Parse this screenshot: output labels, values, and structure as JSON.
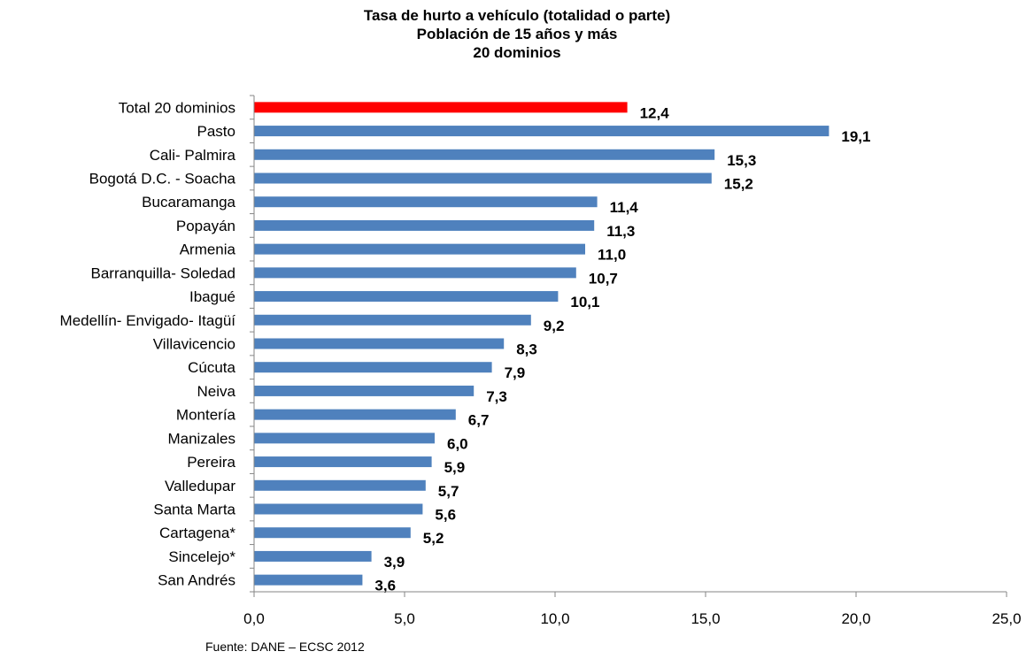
{
  "chart_data": {
    "type": "bar",
    "orientation": "horizontal",
    "title": [
      "Tasa de hurto a vehículo (totalidad o parte)",
      "Población de 15 años y más",
      "20 dominios"
    ],
    "categories": [
      "Total 20 dominios",
      "Pasto",
      "Cali- Palmira",
      "Bogotá D.C. - Soacha",
      "Bucaramanga",
      "Popayán",
      "Armenia",
      "Barranquilla- Soledad",
      "Ibagué",
      "Medellín- Envigado- Itagüí",
      "Villavicencio",
      "Cúcuta",
      "Neiva",
      "Montería",
      "Manizales",
      "Pereira",
      "Valledupar",
      "Santa Marta",
      "Cartagena*",
      "Sincelejo*",
      "San Andrés"
    ],
    "values": [
      12.4,
      19.1,
      15.3,
      15.2,
      11.4,
      11.3,
      11.0,
      10.7,
      10.1,
      9.2,
      8.3,
      7.9,
      7.3,
      6.7,
      6.0,
      5.9,
      5.7,
      5.6,
      5.2,
      3.9,
      3.6
    ],
    "value_labels": [
      "12,4",
      "19,1",
      "15,3",
      "15,2",
      "11,4",
      "11,3",
      "11,0",
      "10,7",
      "10,1",
      "9,2",
      "8,3",
      "7,9",
      "7,3",
      "6,7",
      "6,0",
      "5,9",
      "5,7",
      "5,6",
      "5,2",
      "3,9",
      "3,6"
    ],
    "xlim": [
      0,
      25
    ],
    "xticks": [
      0,
      5,
      10,
      15,
      20,
      25
    ],
    "xtick_labels": [
      "0,0",
      "5,0",
      "10,0",
      "15,0",
      "20,0",
      "25,0"
    ],
    "xlabel": "",
    "ylabel": "",
    "grid": false,
    "legend": "none",
    "bar_color": "#4F81BD",
    "highlight_color": "#FF0000",
    "highlight_category": "Total 20 dominios",
    "source": "Fuente: DANE – ECSC 2012"
  }
}
